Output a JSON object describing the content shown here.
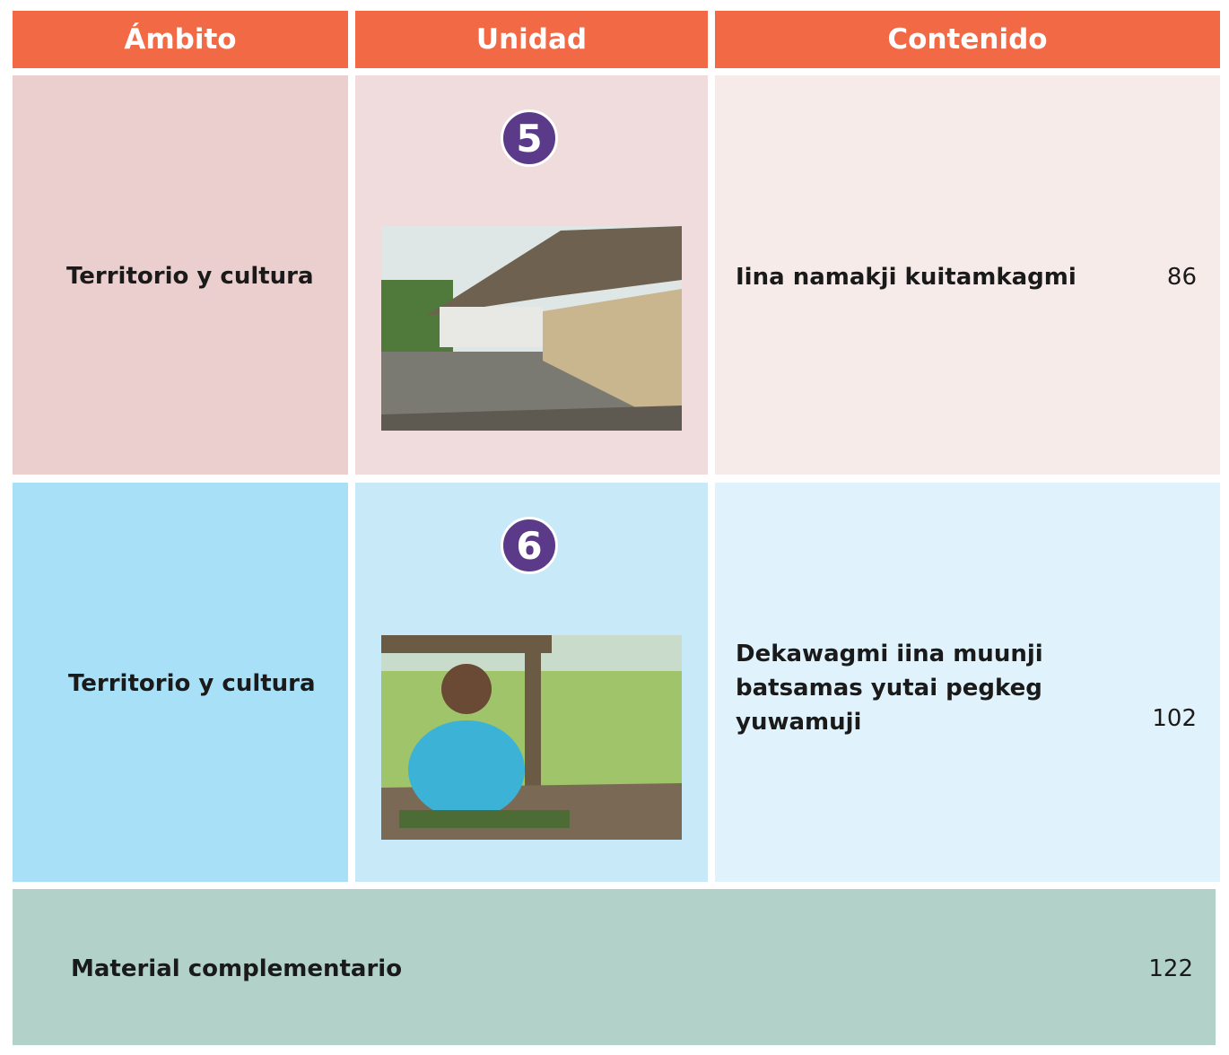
{
  "header": {
    "columns": [
      "Ámbito",
      "Unidad",
      "Contenido"
    ]
  },
  "rows": [
    {
      "ambito": "Territorio y cultura",
      "unit": 5,
      "content": "Iina namakji kuitamkagmi",
      "page": 86
    },
    {
      "ambito": "Territorio y cultura",
      "unit": 6,
      "content": "Dekawagmi iina muunji batsamas yutai pegkeg yuwamuji",
      "page": 102
    }
  ],
  "footer": {
    "label": "Material complementario",
    "page": 122
  }
}
